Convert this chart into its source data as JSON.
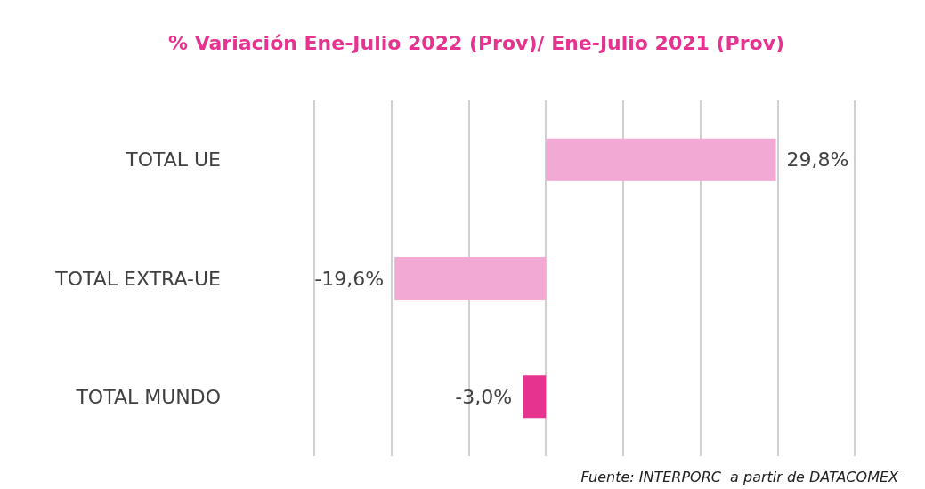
{
  "chart_data": {
    "type": "bar",
    "orientation": "horizontal",
    "title": "% Variación Ene-Julio 2022 (Prov)/ Ene-Julio 2021 (Prov)",
    "categories": [
      "TOTAL UE",
      "TOTAL EXTRA-UE",
      "TOTAL MUNDO"
    ],
    "values": [
      29.8,
      -19.6,
      -3.0
    ],
    "colors": [
      "#f2a9d3",
      "#f2a9d3",
      "#e5338f"
    ],
    "value_labels": [
      "29,8%",
      "-19,6%",
      "-3,0%"
    ],
    "xlim": [
      -30,
      40
    ],
    "xticks": [
      {
        "value": -30,
        "label": null
      },
      {
        "value": -20,
        "label": null
      },
      {
        "value": -10,
        "label": null
      },
      {
        "value": 0,
        "label": null
      },
      {
        "value": 10,
        "label": null
      },
      {
        "value": 20,
        "label": null
      },
      {
        "value": 30,
        "label": null
      },
      {
        "value": 40,
        "label": null
      }
    ],
    "grid": "x",
    "tick_labels": "y",
    "annotations": [
      "Fuente: INTERPORC  a partir de DATACOMEX"
    ]
  }
}
